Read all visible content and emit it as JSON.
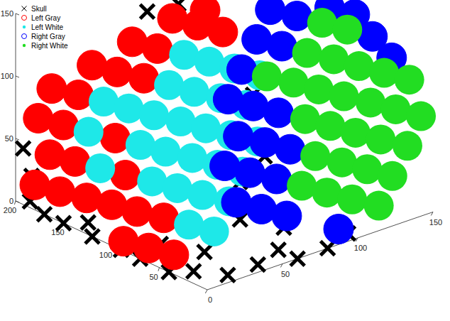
{
  "chart_data": {
    "type": "scatter",
    "xlim": [
      0,
      150
    ],
    "xticks": [
      0,
      50,
      100,
      150
    ],
    "ylim": [
      0,
      200
    ],
    "yticks": [
      50,
      100,
      150,
      200
    ],
    "zlim": [
      0,
      150
    ],
    "zticks": [
      0,
      50,
      100,
      150
    ],
    "grid": false,
    "legend": "northwest",
    "series": [
      {
        "name": "Skull",
        "color": "#000000",
        "marker": "x",
        "x": [
          5,
          1,
          0,
          0,
          0,
          0,
          0,
          0,
          0,
          10,
          20,
          40,
          60,
          60,
          80,
          100,
          60,
          60,
          60,
          70,
          70,
          70,
          62,
          10,
          20,
          30,
          75,
          70
        ],
        "y": [
          200,
          185,
          185,
          170,
          150,
          120,
          90,
          70,
          40,
          30,
          10,
          10,
          20,
          0,
          0,
          10,
          60,
          60,
          40,
          50,
          40,
          140,
          160,
          140,
          80,
          50,
          70,
          30
        ],
        "values": [
          40,
          25,
          5,
          0,
          0,
          0,
          0,
          0,
          0,
          0,
          0,
          0,
          0,
          0,
          0,
          0,
          10,
          40,
          80,
          60,
          20,
          150,
          140,
          0,
          0,
          0,
          100,
          10
        ]
      },
      {
        "name": "Left Gray",
        "color": "#ff0000",
        "marker": "o",
        "x": [
          15,
          24,
          0,
          10,
          19,
          29,
          38,
          4,
          14,
          42,
          52,
          9,
          47,
          56,
          66,
          13,
          70,
          75,
          8,
          17,
          74,
          12,
          22,
          16,
          28,
          22
        ],
        "y": [
          200,
          200,
          180,
          180,
          180,
          180,
          180,
          160,
          160,
          160,
          160,
          140,
          140,
          140,
          140,
          120,
          120,
          120,
          100,
          100,
          100,
          80,
          80,
          60,
          140,
          120
        ],
        "values": [
          60,
          80,
          20,
          40,
          60,
          80,
          100,
          20,
          40,
          100,
          120,
          20,
          100,
          120,
          140,
          20,
          140,
          150,
          0,
          20,
          140,
          0,
          20,
          0,
          60,
          40
        ]
      },
      {
        "name": "Left White",
        "color": "#1ee8e8",
        "marker": ".",
        "x": [
          23,
          33,
          18,
          37,
          32,
          41,
          51,
          61,
          27,
          36,
          46,
          55,
          65,
          31,
          41,
          50,
          60,
          69,
          26,
          35,
          45,
          54,
          64,
          73,
          30,
          40,
          49,
          59
        ],
        "y": [
          160,
          160,
          140,
          140,
          120,
          120,
          120,
          120,
          100,
          100,
          100,
          100,
          100,
          80,
          80,
          80,
          80,
          80,
          60,
          60,
          60,
          60,
          60,
          60,
          40,
          40,
          40,
          40
        ],
        "values": [
          60,
          80,
          40,
          80,
          60,
          80,
          100,
          120,
          40,
          60,
          80,
          100,
          120,
          40,
          60,
          80,
          100,
          120,
          20,
          40,
          60,
          80,
          100,
          120,
          20,
          40,
          60,
          80
        ]
      },
      {
        "name": "Right Gray",
        "color": "#0000ff",
        "marker": "o",
        "x": [
          103,
          112,
          122,
          131,
          88,
          97,
          107,
          126,
          136,
          83,
          92,
          102,
          111,
          145,
          87,
          97,
          106,
          149,
          91,
          148,
          148,
          100
        ],
        "y": [
          140,
          140,
          140,
          140,
          120,
          120,
          120,
          120,
          120,
          100,
          100,
          100,
          100,
          100,
          80,
          80,
          80,
          80,
          60,
          60,
          40,
          20
        ],
        "values": [
          60,
          80,
          100,
          120,
          20,
          40,
          60,
          100,
          120,
          0,
          20,
          40,
          60,
          130,
          0,
          20,
          40,
          130,
          0,
          120,
          110,
          0
        ]
      },
      {
        "name": "Right White",
        "color": "#22dd22",
        "marker": ".",
        "x": [
          116,
          121,
          130,
          140,
          116,
          125,
          135,
          144,
          101,
          110,
          120,
          129,
          139,
          105,
          115,
          124,
          134,
          143,
          109,
          119,
          128,
          138,
          147,
          114,
          123,
          133,
          142
        ],
        "y": [
          120,
          100,
          100,
          100,
          80,
          80,
          80,
          80,
          60,
          60,
          60,
          60,
          60,
          40,
          40,
          40,
          40,
          40,
          20,
          20,
          20,
          20,
          20,
          0,
          0,
          0,
          0
        ],
        "values": [
          80,
          80,
          100,
          120,
          60,
          80,
          100,
          120,
          20,
          40,
          60,
          80,
          100,
          20,
          40,
          60,
          80,
          100,
          20,
          40,
          60,
          80,
          100,
          20,
          40,
          60,
          80
        ]
      }
    ]
  }
}
